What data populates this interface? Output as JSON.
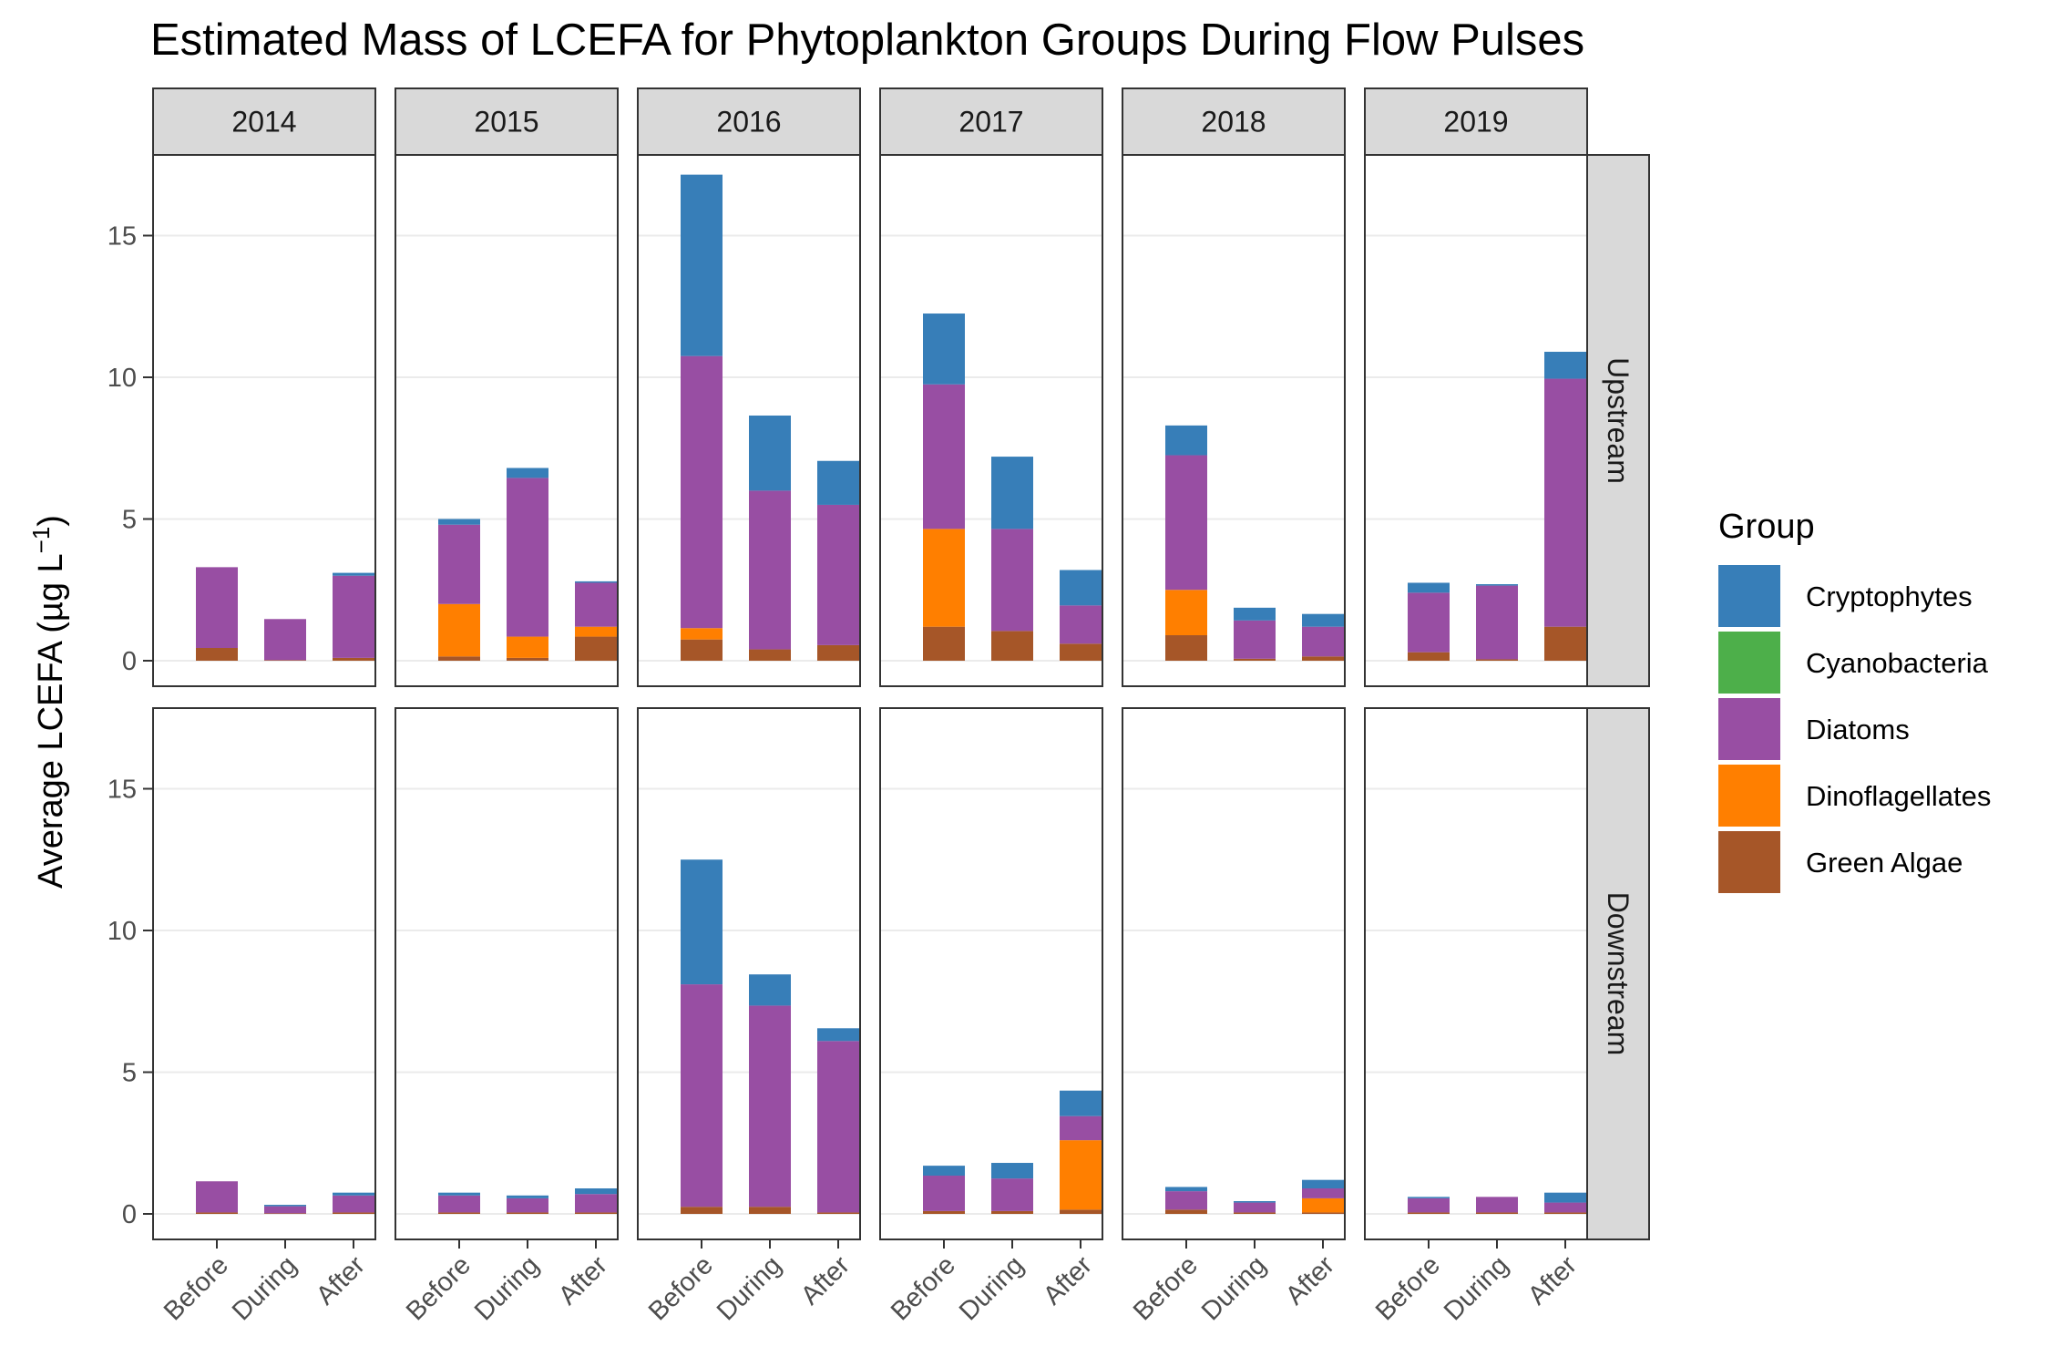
{
  "chart_data": {
    "type": "bar",
    "stacked": true,
    "title": "Estimated Mass of LCEFA for Phytoplankton Groups During Flow Pulses",
    "ylabel": "Average LCEFA (µg L",
    "ylabel_sup": "−1",
    "ylabel_close": ")",
    "xlabel": "",
    "ylim": [
      0,
      18
    ],
    "yticks": [
      0,
      5,
      10,
      15
    ],
    "grid": true,
    "categories": [
      "Before",
      "During",
      "After"
    ],
    "years": [
      "2014",
      "2015",
      "2016",
      "2017",
      "2018",
      "2019"
    ],
    "regions": [
      "Upstream",
      "Downstream"
    ],
    "legend": {
      "title": "Group",
      "position": "right",
      "entries": [
        {
          "name": "Cryptophytes",
          "color": "#377EB8"
        },
        {
          "name": "Cyanobacteria",
          "color": "#4DAF4A"
        },
        {
          "name": "Diatoms",
          "color": "#984EA3"
        },
        {
          "name": "Dinoflagellates",
          "color": "#FF7F00"
        },
        {
          "name": "Green Algae",
          "color": "#A65628"
        }
      ]
    },
    "values": {
      "Upstream": {
        "2014": [
          [
            0,
            0,
            2.85,
            0,
            0.45
          ],
          [
            0,
            0,
            1.45,
            0,
            0.02
          ],
          [
            0.1,
            0,
            2.9,
            0,
            0.1
          ]
        ],
        "2015": [
          [
            0.2,
            0,
            2.8,
            1.85,
            0.15
          ],
          [
            0.35,
            0,
            5.6,
            0.75,
            0.1
          ],
          [
            0.05,
            0,
            1.55,
            0.35,
            0.85
          ]
        ],
        "2016": [
          [
            6.4,
            0,
            9.6,
            0.4,
            0.75
          ],
          [
            2.65,
            0,
            5.6,
            0,
            0.4
          ],
          [
            1.55,
            0,
            4.95,
            0,
            0.55
          ]
        ],
        "2017": [
          [
            2.5,
            0,
            5.1,
            3.45,
            1.2
          ],
          [
            2.55,
            0,
            3.6,
            0,
            1.05
          ],
          [
            1.25,
            0,
            1.35,
            0,
            0.6
          ]
        ],
        "2018": [
          [
            1.05,
            0,
            4.75,
            1.6,
            0.9
          ],
          [
            0.45,
            0,
            1.35,
            0,
            0.07
          ],
          [
            0.45,
            0,
            1.05,
            0,
            0.15
          ]
        ],
        "2019": [
          [
            0.35,
            0,
            2.1,
            0,
            0.3
          ],
          [
            0.05,
            0,
            2.6,
            0,
            0.05
          ],
          [
            0.95,
            0,
            8.75,
            0,
            1.2
          ]
        ]
      },
      "Downstream": {
        "2014": [
          [
            0,
            0,
            1.1,
            0,
            0.05
          ],
          [
            0.05,
            0,
            0.25,
            0,
            0.02
          ],
          [
            0.1,
            0,
            0.6,
            0,
            0.05
          ]
        ],
        "2015": [
          [
            0.1,
            0,
            0.6,
            0,
            0.05
          ],
          [
            0.1,
            0,
            0.5,
            0,
            0.05
          ],
          [
            0.2,
            0,
            0.65,
            0,
            0.05
          ]
        ],
        "2016": [
          [
            4.4,
            0,
            7.85,
            0,
            0.25
          ],
          [
            1.1,
            0,
            7.1,
            0,
            0.25
          ],
          [
            0.45,
            0,
            6.05,
            0,
            0.05
          ]
        ],
        "2017": [
          [
            0.35,
            0,
            1.25,
            0,
            0.1
          ],
          [
            0.55,
            0,
            1.15,
            0,
            0.1
          ],
          [
            0.9,
            0,
            0.85,
            2.45,
            0.15
          ]
        ],
        "2018": [
          [
            0.15,
            0,
            0.65,
            0,
            0.15
          ],
          [
            0.05,
            0,
            0.35,
            0,
            0.05
          ],
          [
            0.3,
            0,
            0.35,
            0.5,
            0.05
          ]
        ],
        "2019": [
          [
            0.05,
            0,
            0.5,
            0,
            0.05
          ],
          [
            0,
            0,
            0.55,
            0,
            0.05
          ],
          [
            0.35,
            0,
            0.35,
            0,
            0.05
          ]
        ]
      }
    }
  }
}
